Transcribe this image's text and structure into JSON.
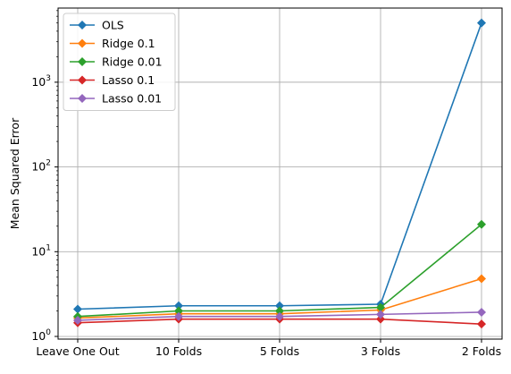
{
  "chart_data": {
    "type": "line",
    "title": "",
    "xlabel": "",
    "ylabel": "Mean Squared Error",
    "yscale": "log",
    "ylim": [
      0.93,
      7500
    ],
    "categories": [
      "Leave One Out",
      "10 Folds",
      "5 Folds",
      "3 Folds",
      "2 Folds"
    ],
    "y_ticks": [
      {
        "value": 1,
        "base": "10",
        "exp": "0"
      },
      {
        "value": 10,
        "base": "10",
        "exp": "1"
      },
      {
        "value": 100,
        "base": "10",
        "exp": "2"
      },
      {
        "value": 1000,
        "base": "10",
        "exp": "3"
      }
    ],
    "grid": true,
    "legend_position": "top-left",
    "marker": "diamond",
    "series": [
      {
        "name": "OLS",
        "color": "#1f77b4",
        "values": [
          2.1,
          2.3,
          2.3,
          2.4,
          5000
        ]
      },
      {
        "name": "Ridge 0.1",
        "color": "#ff7f0e",
        "values": [
          1.65,
          1.85,
          1.85,
          2.05,
          4.8
        ]
      },
      {
        "name": "Ridge 0.01",
        "color": "#2ca02c",
        "values": [
          1.72,
          2.0,
          2.0,
          2.2,
          21
        ]
      },
      {
        "name": "Lasso 0.1",
        "color": "#d62728",
        "values": [
          1.45,
          1.6,
          1.6,
          1.6,
          1.4
        ]
      },
      {
        "name": "Lasso 0.01",
        "color": "#9467bd",
        "values": [
          1.55,
          1.72,
          1.72,
          1.82,
          1.93
        ]
      }
    ]
  }
}
